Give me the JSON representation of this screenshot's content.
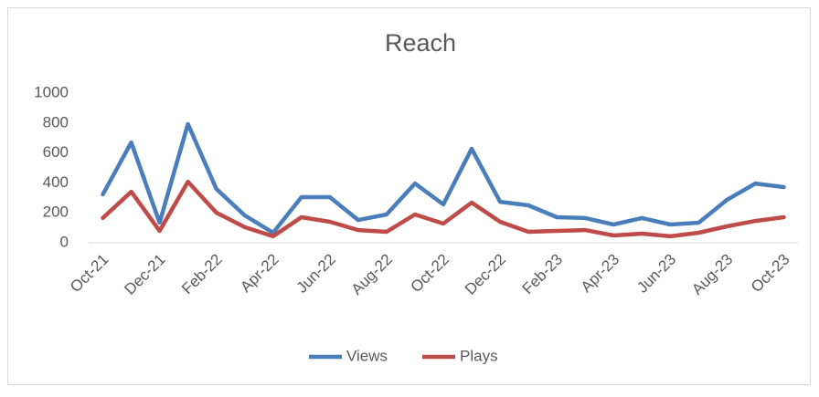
{
  "chart_data": {
    "type": "line",
    "title": "Reach",
    "categories": [
      "Oct-21",
      null,
      "Dec-21",
      null,
      "Feb-22",
      null,
      "Apr-22",
      null,
      "Jun-22",
      null,
      "Aug-22",
      null,
      "Oct-22",
      null,
      "Dec-22",
      null,
      "Feb-23",
      null,
      "Apr-23",
      null,
      "Jun-23",
      null,
      "Aug-23",
      null,
      "Oct-23"
    ],
    "series": [
      {
        "name": "Views",
        "color": "#4a7ebb",
        "values": [
          323,
          670,
          134,
          793,
          360,
          183,
          67,
          305,
          305,
          152,
          189,
          396,
          256,
          628,
          274,
          250,
          171,
          165,
          122,
          165,
          122,
          134,
          287,
          396,
          372
        ]
      },
      {
        "name": "Plays",
        "color": "#be4b48",
        "values": [
          165,
          341,
          79,
          408,
          201,
          104,
          43,
          171,
          140,
          85,
          73,
          189,
          128,
          268,
          140,
          73,
          79,
          85,
          49,
          61,
          43,
          67,
          110,
          146,
          171
        ]
      }
    ],
    "ylim": [
      0,
      1000
    ],
    "yticks": [
      0,
      200,
      400,
      600,
      800,
      1000
    ],
    "grid": false,
    "legend": "bottom"
  }
}
